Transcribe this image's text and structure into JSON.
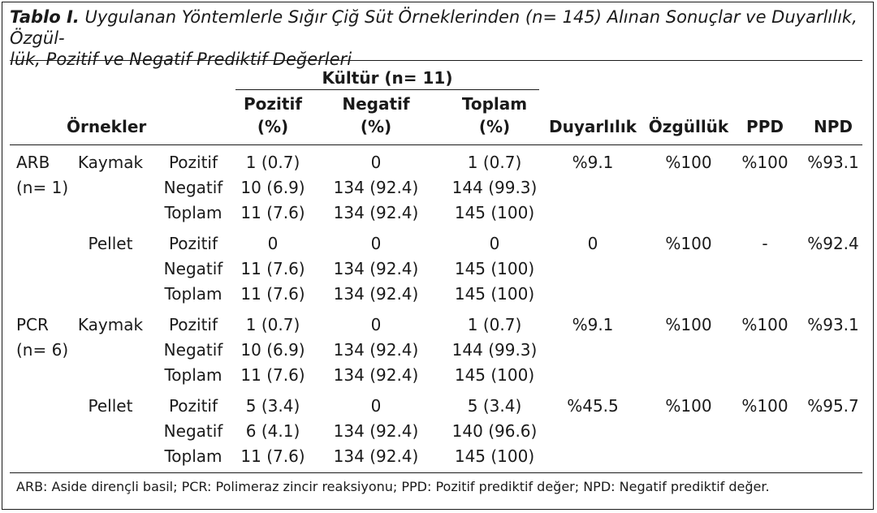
{
  "caption": {
    "label": "Tablo I.",
    "text": "Uygulanan Yöntemlerle Sığır Çiğ Süt Örneklerinden (n= 145) Alınan Sonuçlar ve Duyarlılık, Özgül-",
    "text2": "lük, Pozitif ve Negatif Prediktif Değerleri"
  },
  "header": {
    "kultur": "Kültür (n= 11)",
    "ornekler": "Örnekler",
    "pozitif": "Pozitif",
    "negatif": "Negatif",
    "toplam": "Toplam",
    "pct": "(%)",
    "duyarlilik": "Duyarlılık",
    "ozgulluk": "Özgüllük",
    "ppd": "PPD",
    "npd": "NPD"
  },
  "groups": [
    {
      "method": "ARB",
      "n": "(n= 1)",
      "sample": "Kaymak",
      "rows": [
        {
          "label": "Pozitif",
          "poz": "1 (0.7)",
          "neg": "0",
          "top": "1 (0.7)"
        },
        {
          "label": "Negatif",
          "poz": "10 (6.9)",
          "neg": "134 (92.4)",
          "top": "144 (99.3)"
        },
        {
          "label": "Toplam",
          "poz": "11 (7.6)",
          "neg": "134 (92.4)",
          "top": "145 (100)"
        }
      ],
      "duyarlilik": "%9.1",
      "ozgulluk": "%100",
      "ppd": "%100",
      "npd": "%93.1"
    },
    {
      "method": "",
      "n": "",
      "sample": "Pellet",
      "rows": [
        {
          "label": "Pozitif",
          "poz": "0",
          "neg": "0",
          "top": "0"
        },
        {
          "label": "Negatif",
          "poz": "11 (7.6)",
          "neg": "134 (92.4)",
          "top": "145 (100)"
        },
        {
          "label": "Toplam",
          "poz": "11 (7.6)",
          "neg": "134 (92.4)",
          "top": "145 (100)"
        }
      ],
      "duyarlilik": "0",
      "ozgulluk": "%100",
      "ppd": "-",
      "npd": "%92.4"
    },
    {
      "method": "PCR",
      "n": "(n= 6)",
      "sample": "Kaymak",
      "rows": [
        {
          "label": "Pozitif",
          "poz": "1 (0.7)",
          "neg": "0",
          "top": "1 (0.7)"
        },
        {
          "label": "Negatif",
          "poz": "10 (6.9)",
          "neg": "134 (92.4)",
          "top": "144 (99.3)"
        },
        {
          "label": "Toplam",
          "poz": "11 (7.6)",
          "neg": "134 (92.4)",
          "top": "145 (100)"
        }
      ],
      "duyarlilik": "%9.1",
      "ozgulluk": "%100",
      "ppd": "%100",
      "npd": "%93.1"
    },
    {
      "method": "",
      "n": "",
      "sample": "Pellet",
      "rows": [
        {
          "label": "Pozitif",
          "poz": "5 (3.4)",
          "neg": "0",
          "top": "5 (3.4)"
        },
        {
          "label": "Negatif",
          "poz": "6 (4.1)",
          "neg": "134 (92.4)",
          "top": "140 (96.6)"
        },
        {
          "label": "Toplam",
          "poz": "11 (7.6)",
          "neg": "134 (92.4)",
          "top": "145 (100)"
        }
      ],
      "duyarlilik": "%45.5",
      "ozgulluk": "%100",
      "ppd": "%100",
      "npd": "%95.7"
    }
  ],
  "footnote": "ARB: Aside dirençli basil; PCR: Polimeraz zincir reaksiyonu; PPD: Pozitif prediktif değer; NPD: Negatif prediktif değer."
}
